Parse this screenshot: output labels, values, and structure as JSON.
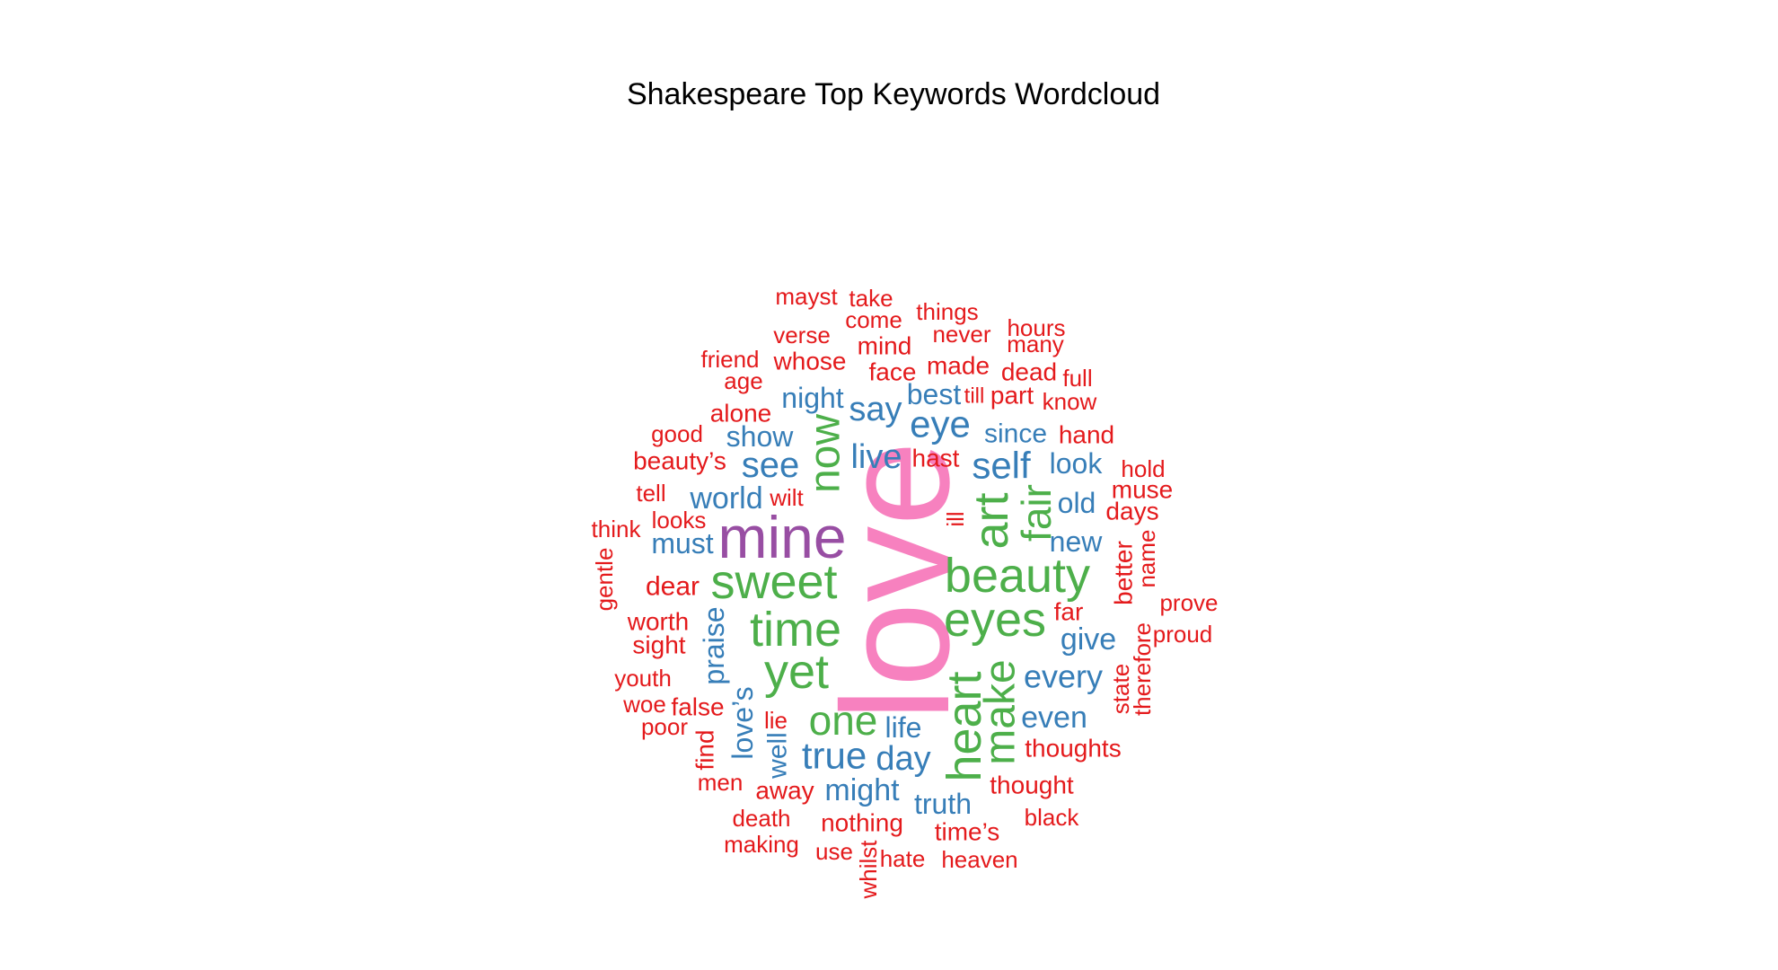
{
  "title": "Shakespeare Top Keywords Wordcloud",
  "colors": {
    "pink": "#F781BF",
    "purple": "#984EA3",
    "green": "#4DAF4A",
    "blue": "#377EB8",
    "red": "#E41A1C"
  },
  "chart_data": {
    "type": "wordcloud",
    "title": "Shakespeare Top Keywords Wordcloud",
    "words": [
      {
        "text": "love",
        "size": 5,
        "color": "pink",
        "rotated": true
      },
      {
        "text": "mine",
        "size": 4,
        "color": "purple",
        "rotated": false
      },
      {
        "text": "sweet",
        "size": 3,
        "color": "green",
        "rotated": false
      },
      {
        "text": "beauty",
        "size": 3,
        "color": "green",
        "rotated": false
      },
      {
        "text": "time",
        "size": 3,
        "color": "green",
        "rotated": false
      },
      {
        "text": "eyes",
        "size": 3,
        "color": "green",
        "rotated": false
      },
      {
        "text": "yet",
        "size": 3,
        "color": "green",
        "rotated": false
      },
      {
        "text": "heart",
        "size": 3,
        "color": "green",
        "rotated": true
      },
      {
        "text": "art",
        "size": 3,
        "color": "green",
        "rotated": true
      },
      {
        "text": "now",
        "size": 3,
        "color": "green",
        "rotated": true
      },
      {
        "text": "make",
        "size": 3,
        "color": "green",
        "rotated": true
      },
      {
        "text": "one",
        "size": 3,
        "color": "green",
        "rotated": false
      },
      {
        "text": "fair",
        "size": 3,
        "color": "green",
        "rotated": true
      },
      {
        "text": "self",
        "size": 2,
        "color": "blue",
        "rotated": false
      },
      {
        "text": "eye",
        "size": 2,
        "color": "blue",
        "rotated": false
      },
      {
        "text": "see",
        "size": 2,
        "color": "blue",
        "rotated": false
      },
      {
        "text": "true",
        "size": 2,
        "color": "blue",
        "rotated": false
      },
      {
        "text": "say",
        "size": 2,
        "color": "blue",
        "rotated": false
      },
      {
        "text": "world",
        "size": 2,
        "color": "blue",
        "rotated": false
      },
      {
        "text": "live",
        "size": 2,
        "color": "blue",
        "rotated": false
      },
      {
        "text": "day",
        "size": 2,
        "color": "blue",
        "rotated": false
      },
      {
        "text": "might",
        "size": 2,
        "color": "blue",
        "rotated": false
      },
      {
        "text": "every",
        "size": 2,
        "color": "blue",
        "rotated": false
      },
      {
        "text": "even",
        "size": 2,
        "color": "blue",
        "rotated": false
      },
      {
        "text": "give",
        "size": 2,
        "color": "blue",
        "rotated": false
      },
      {
        "text": "new",
        "size": 2,
        "color": "blue",
        "rotated": false
      },
      {
        "text": "old",
        "size": 2,
        "color": "blue",
        "rotated": false
      },
      {
        "text": "look",
        "size": 2,
        "color": "blue",
        "rotated": false
      },
      {
        "text": "since",
        "size": 2,
        "color": "blue",
        "rotated": false
      },
      {
        "text": "best",
        "size": 2,
        "color": "blue",
        "rotated": false
      },
      {
        "text": "night",
        "size": 2,
        "color": "blue",
        "rotated": false
      },
      {
        "text": "show",
        "size": 2,
        "color": "blue",
        "rotated": false
      },
      {
        "text": "must",
        "size": 2,
        "color": "blue",
        "rotated": false
      },
      {
        "text": "praise",
        "size": 2,
        "color": "blue",
        "rotated": true
      },
      {
        "text": "love’s",
        "size": 2,
        "color": "blue",
        "rotated": true
      },
      {
        "text": "well",
        "size": 2,
        "color": "blue",
        "rotated": true
      },
      {
        "text": "life",
        "size": 2,
        "color": "blue",
        "rotated": false
      },
      {
        "text": "truth",
        "size": 2,
        "color": "blue",
        "rotated": false
      },
      {
        "text": "mayst",
        "size": 1,
        "color": "red",
        "rotated": false
      },
      {
        "text": "take",
        "size": 1,
        "color": "red",
        "rotated": false
      },
      {
        "text": "things",
        "size": 1,
        "color": "red",
        "rotated": false
      },
      {
        "text": "come",
        "size": 1,
        "color": "red",
        "rotated": false
      },
      {
        "text": "hours",
        "size": 1,
        "color": "red",
        "rotated": false
      },
      {
        "text": "verse",
        "size": 1,
        "color": "red",
        "rotated": false
      },
      {
        "text": "never",
        "size": 1,
        "color": "red",
        "rotated": false
      },
      {
        "text": "many",
        "size": 1,
        "color": "red",
        "rotated": false
      },
      {
        "text": "mind",
        "size": 1,
        "color": "red",
        "rotated": false
      },
      {
        "text": "friend",
        "size": 1,
        "color": "red",
        "rotated": false
      },
      {
        "text": "whose",
        "size": 1,
        "color": "red",
        "rotated": false
      },
      {
        "text": "made",
        "size": 1,
        "color": "red",
        "rotated": false
      },
      {
        "text": "dead",
        "size": 1,
        "color": "red",
        "rotated": false
      },
      {
        "text": "full",
        "size": 1,
        "color": "red",
        "rotated": false
      },
      {
        "text": "age",
        "size": 1,
        "color": "red",
        "rotated": false
      },
      {
        "text": "face",
        "size": 1,
        "color": "red",
        "rotated": false
      },
      {
        "text": "part",
        "size": 1,
        "color": "red",
        "rotated": false
      },
      {
        "text": "till",
        "size": 1,
        "color": "red",
        "rotated": false
      },
      {
        "text": "know",
        "size": 1,
        "color": "red",
        "rotated": false
      },
      {
        "text": "alone",
        "size": 1,
        "color": "red",
        "rotated": false
      },
      {
        "text": "good",
        "size": 1,
        "color": "red",
        "rotated": false
      },
      {
        "text": "hand",
        "size": 1,
        "color": "red",
        "rotated": false
      },
      {
        "text": "beauty’s",
        "size": 1,
        "color": "red",
        "rotated": false
      },
      {
        "text": "hast",
        "size": 1,
        "color": "red",
        "rotated": false
      },
      {
        "text": "hold",
        "size": 1,
        "color": "red",
        "rotated": false
      },
      {
        "text": "tell",
        "size": 1,
        "color": "red",
        "rotated": false
      },
      {
        "text": "wilt",
        "size": 1,
        "color": "red",
        "rotated": false
      },
      {
        "text": "muse",
        "size": 1,
        "color": "red",
        "rotated": false
      },
      {
        "text": "days",
        "size": 1,
        "color": "red",
        "rotated": false
      },
      {
        "text": "looks",
        "size": 1,
        "color": "red",
        "rotated": false
      },
      {
        "text": "ill",
        "size": 1,
        "color": "red",
        "rotated": true
      },
      {
        "text": "think",
        "size": 1,
        "color": "red",
        "rotated": false
      },
      {
        "text": "better",
        "size": 1,
        "color": "red",
        "rotated": true
      },
      {
        "text": "name",
        "size": 1,
        "color": "red",
        "rotated": true
      },
      {
        "text": "gentle",
        "size": 1,
        "color": "red",
        "rotated": true
      },
      {
        "text": "dear",
        "size": 1,
        "color": "red",
        "rotated": false
      },
      {
        "text": "prove",
        "size": 1,
        "color": "red",
        "rotated": false
      },
      {
        "text": "far",
        "size": 1,
        "color": "red",
        "rotated": false
      },
      {
        "text": "worth",
        "size": 1,
        "color": "red",
        "rotated": false
      },
      {
        "text": "proud",
        "size": 1,
        "color": "red",
        "rotated": false
      },
      {
        "text": "sight",
        "size": 1,
        "color": "red",
        "rotated": false
      },
      {
        "text": "therefore",
        "size": 1,
        "color": "red",
        "rotated": true
      },
      {
        "text": "youth",
        "size": 1,
        "color": "red",
        "rotated": false
      },
      {
        "text": "state",
        "size": 1,
        "color": "red",
        "rotated": true
      },
      {
        "text": "woe",
        "size": 1,
        "color": "red",
        "rotated": false
      },
      {
        "text": "false",
        "size": 1,
        "color": "red",
        "rotated": false
      },
      {
        "text": "poor",
        "size": 1,
        "color": "red",
        "rotated": false
      },
      {
        "text": "lie",
        "size": 1,
        "color": "red",
        "rotated": false
      },
      {
        "text": "find",
        "size": 1,
        "color": "red",
        "rotated": true
      },
      {
        "text": "thoughts",
        "size": 1,
        "color": "red",
        "rotated": false
      },
      {
        "text": "men",
        "size": 1,
        "color": "red",
        "rotated": false
      },
      {
        "text": "away",
        "size": 1,
        "color": "red",
        "rotated": false
      },
      {
        "text": "thought",
        "size": 1,
        "color": "red",
        "rotated": false
      },
      {
        "text": "death",
        "size": 1,
        "color": "red",
        "rotated": false
      },
      {
        "text": "nothing",
        "size": 1,
        "color": "red",
        "rotated": false
      },
      {
        "text": "black",
        "size": 1,
        "color": "red",
        "rotated": false
      },
      {
        "text": "making",
        "size": 1,
        "color": "red",
        "rotated": false
      },
      {
        "text": "time’s",
        "size": 1,
        "color": "red",
        "rotated": false
      },
      {
        "text": "use",
        "size": 1,
        "color": "red",
        "rotated": false
      },
      {
        "text": "whilst",
        "size": 1,
        "color": "red",
        "rotated": true
      },
      {
        "text": "hate",
        "size": 1,
        "color": "red",
        "rotated": false
      },
      {
        "text": "heaven",
        "size": 1,
        "color": "red",
        "rotated": false
      }
    ]
  }
}
